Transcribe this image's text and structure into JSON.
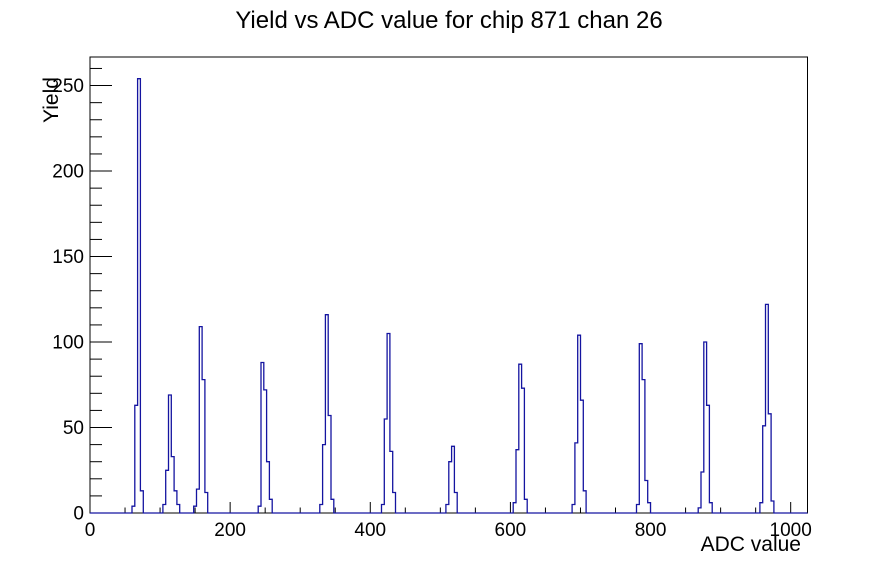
{
  "page": {
    "background": "#ffffff",
    "frame_color": "#000000"
  },
  "chart_data": {
    "type": "bar",
    "subtype": "histogram-step-outline",
    "title": "Yield vs ADC value for chip 871 chan 26",
    "xlabel": "ADC value",
    "ylabel": "Yield",
    "xlim": [
      0,
      1024
    ],
    "ylim": [
      0,
      266.7
    ],
    "x_major_ticks": [
      0,
      200,
      400,
      600,
      800,
      1000
    ],
    "x_minor_step": 50,
    "y_major_ticks": [
      0,
      50,
      100,
      150,
      200,
      250
    ],
    "y_minor_step": 10,
    "grid": false,
    "legend": false,
    "line_color": "#1414a0",
    "bin_width": 4,
    "peaks": [
      {
        "adc": 70,
        "yield": 254
      },
      {
        "adc": 114,
        "yield": 69
      },
      {
        "adc": 158,
        "yield": 109
      },
      {
        "adc": 246,
        "yield": 88
      },
      {
        "adc": 338,
        "yield": 116
      },
      {
        "adc": 426,
        "yield": 105
      },
      {
        "adc": 518,
        "yield": 39
      },
      {
        "adc": 614,
        "yield": 87
      },
      {
        "adc": 698,
        "yield": 104
      },
      {
        "adc": 786,
        "yield": 99
      },
      {
        "adc": 878,
        "yield": 100
      },
      {
        "adc": 966,
        "yield": 122
      }
    ],
    "bins": [
      [
        60,
        4
      ],
      [
        64,
        63
      ],
      [
        68,
        254
      ],
      [
        72,
        13
      ],
      [
        104,
        5
      ],
      [
        108,
        25
      ],
      [
        112,
        69
      ],
      [
        116,
        33
      ],
      [
        120,
        13
      ],
      [
        124,
        5
      ],
      [
        148,
        4
      ],
      [
        152,
        14
      ],
      [
        156,
        109
      ],
      [
        160,
        78
      ],
      [
        164,
        12
      ],
      [
        240,
        4
      ],
      [
        244,
        88
      ],
      [
        248,
        72
      ],
      [
        252,
        30
      ],
      [
        256,
        8
      ],
      [
        328,
        5
      ],
      [
        332,
        40
      ],
      [
        336,
        116
      ],
      [
        340,
        57
      ],
      [
        344,
        8
      ],
      [
        416,
        5
      ],
      [
        420,
        55
      ],
      [
        424,
        105
      ],
      [
        428,
        36
      ],
      [
        432,
        12
      ],
      [
        508,
        5
      ],
      [
        512,
        30
      ],
      [
        516,
        39
      ],
      [
        520,
        12
      ],
      [
        604,
        6
      ],
      [
        608,
        37
      ],
      [
        612,
        87
      ],
      [
        616,
        73
      ],
      [
        620,
        8
      ],
      [
        688,
        5
      ],
      [
        692,
        41
      ],
      [
        696,
        104
      ],
      [
        700,
        66
      ],
      [
        704,
        13
      ],
      [
        780,
        5
      ],
      [
        784,
        99
      ],
      [
        788,
        78
      ],
      [
        792,
        19
      ],
      [
        796,
        6
      ],
      [
        868,
        3
      ],
      [
        872,
        24
      ],
      [
        876,
        100
      ],
      [
        880,
        63
      ],
      [
        884,
        6
      ],
      [
        956,
        6
      ],
      [
        960,
        51
      ],
      [
        964,
        122
      ],
      [
        968,
        58
      ],
      [
        972,
        7
      ]
    ]
  }
}
